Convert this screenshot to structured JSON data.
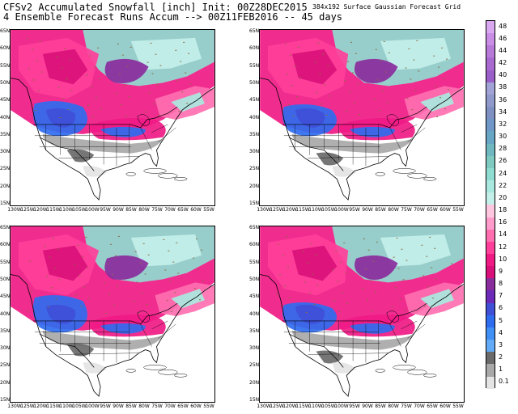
{
  "title_line1": "CFSv2 Accumulated Snowfall [inch] Init: 00Z28DEC2015",
  "title_line2": "4 Ensemble Forecast Runs Accum --> 00Z11FEB2016 -- 45 days",
  "grid_note": "384x192 Surface Gaussian Forecast Grid",
  "latitudes": [
    "65N",
    "60N",
    "55N",
    "50N",
    "45N",
    "40N",
    "35N",
    "30N",
    "25N",
    "20N",
    "15N"
  ],
  "longitudes": [
    "130W",
    "125W",
    "120W",
    "115W",
    "110W",
    "105W",
    "100W",
    "95W",
    "90W",
    "85W",
    "80W",
    "75W",
    "70W",
    "65W",
    "60W",
    "55W"
  ],
  "panels": [
    {
      "id": "p1",
      "variant": "a"
    },
    {
      "id": "p2",
      "variant": "b"
    },
    {
      "id": "p3",
      "variant": "c"
    },
    {
      "id": "p4",
      "variant": "d"
    }
  ],
  "colorbar": {
    "labels": [
      "48",
      "46",
      "44",
      "42",
      "40",
      "38",
      "36",
      "34",
      "32",
      "30",
      "28",
      "26",
      "24",
      "22",
      "20",
      "18",
      "16",
      "14",
      "12",
      "10",
      "9",
      "8",
      "7",
      "6",
      "5",
      "4",
      "3",
      "2",
      "1",
      "0.1"
    ],
    "colors": [
      "#d9a8f0",
      "#c98de6",
      "#b87ad9",
      "#a86ad0",
      "#9a5ec8",
      "#a1a3d6",
      "#8f99cc",
      "#7f90c2",
      "#6f98c8",
      "#67a6c4",
      "#6fb8c0",
      "#7ecac0",
      "#8fdcd0",
      "#a9e9e0",
      "#c4f0ea",
      "#ffc6e0",
      "#ff9ccb",
      "#ff6fb0",
      "#ff3f9a",
      "#f01a85",
      "#d9107a",
      "#8a2d9c",
      "#6b2ab8",
      "#3f4fd6",
      "#2f6df0",
      "#3f8ff5",
      "#62aaf5",
      "#6a6a6a",
      "#a8a8a8",
      "#e4e4e4"
    ]
  }
}
